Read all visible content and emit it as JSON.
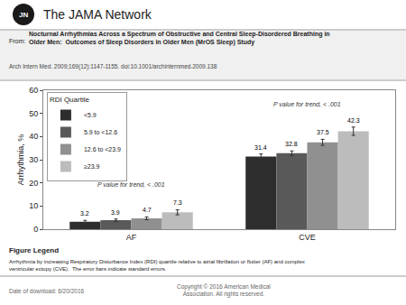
{
  "chart_data": {
    "type": "bar",
    "title": "Nocturnal Arrhythmias Across a Spectrum of Obstructive and Central Sleep-Disordered Breathing in\nOlder Men:  Outcomes of Sleep Disorders in Older Men (MrOS Sleep) Study",
    "subtitle": "Arch Intern Med. 2009;169(12):1147-1155. doi:10.1001/archinternmed.2009.138",
    "categories": [
      "AF",
      "CVE"
    ],
    "ylabel": "Arrhythmia, %",
    "ylim": [
      0,
      60
    ],
    "yticks": [
      0,
      10,
      20,
      30,
      40,
      50,
      60
    ],
    "grid": false,
    "legend": "upper left",
    "legend_title": "RDI Quartile",
    "data_labels": true,
    "series": [
      {
        "name": "<5.9",
        "color": "#2d2d2d",
        "values": [
          3.2,
          31.4
        ],
        "errors": [
          0.6,
          1.1
        ]
      },
      {
        "name": "5.9 to <12.6",
        "color": "#595959",
        "values": [
          3.9,
          32.8
        ],
        "errors": [
          0.5,
          1.0
        ]
      },
      {
        "name": "12.6 to <23.9",
        "color": "#909090",
        "values": [
          4.7,
          37.5
        ],
        "errors": [
          0.6,
          1.3
        ]
      },
      {
        "name": "≥23.9",
        "color": "#bcbcbc",
        "values": [
          7.3,
          42.3
        ],
        "errors": [
          1.1,
          1.8
        ]
      }
    ],
    "annotations": [
      {
        "text": "P value for trend, < .001",
        "x": "AF",
        "y": 17
      },
      {
        "text": "P value for trend, < .001",
        "x": "CVE",
        "y": 52
      },
      {
        "text": "JN"
      },
      {
        "text": "The JAMA Network"
      },
      {
        "text": "From:"
      },
      {
        "text": "Figure Legend"
      },
      {
        "text": "Arrhythmia by increasing Respiratory Disturbance Index (RDI) quartile relative to atrial fibrillation or flutter (AF) and complex\nventricular ectopy (CVE).  The error bars indicate standard errors."
      },
      {
        "text": "Date of download: 6/20/2016"
      },
      {
        "text": "Copyright © 2016 American Medical\nAssociation. All rights reserved."
      }
    ]
  }
}
